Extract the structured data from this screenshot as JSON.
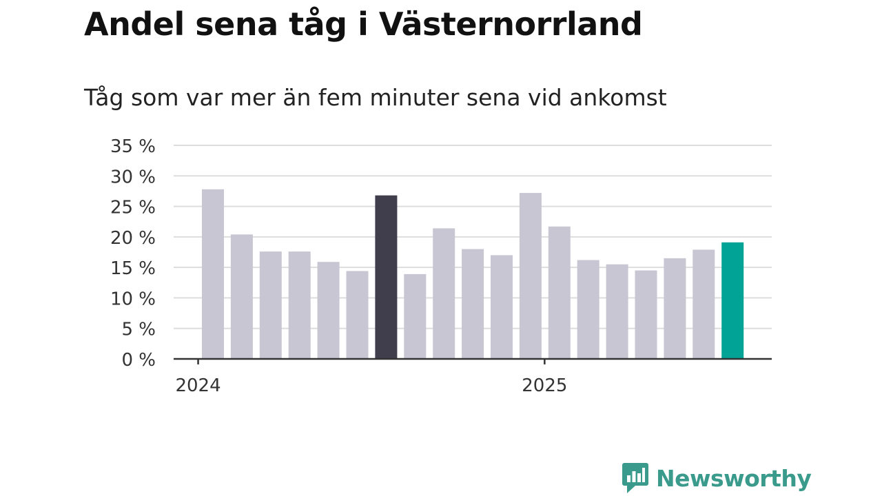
{
  "title": "Andel sena tåg i Västernorrland",
  "subtitle": "Tåg som var mer än fem minuter sena vid ankomst",
  "brand": {
    "name": "Newsworthy",
    "color": "#3a9a8c",
    "icon": "bar-chart-speech-bubble-icon"
  },
  "chart_data": {
    "type": "bar",
    "title": "Andel sena tåg i Västernorrland",
    "subtitle": "Tåg som var mer än fem minuter sena vid ankomst",
    "xlabel": "",
    "ylabel": "",
    "ylim": [
      0,
      35
    ],
    "yticks": [
      0,
      5,
      10,
      15,
      20,
      25,
      30,
      35
    ],
    "ytick_labels": [
      "0 %",
      "5 %",
      "10 %",
      "15 %",
      "20 %",
      "25 %",
      "30 %",
      "35 %"
    ],
    "x_tick_labels": [
      {
        "label": "2024",
        "before_bar_index": 0
      },
      {
        "label": "2025",
        "before_bar_index": 12
      }
    ],
    "grid": true,
    "values": [
      27.8,
      20.4,
      17.6,
      17.6,
      15.9,
      14.4,
      26.8,
      13.9,
      21.4,
      18.0,
      17.0,
      27.2,
      21.7,
      16.2,
      15.5,
      14.5,
      16.5,
      17.9,
      19.1
    ],
    "colors": {
      "default": "#c8c6d2",
      "highlight": "#403d4d",
      "latest": "#00a396",
      "grid": "#dddddd",
      "axis": "#333333"
    },
    "highlight_index": 6,
    "latest_index": 18
  }
}
